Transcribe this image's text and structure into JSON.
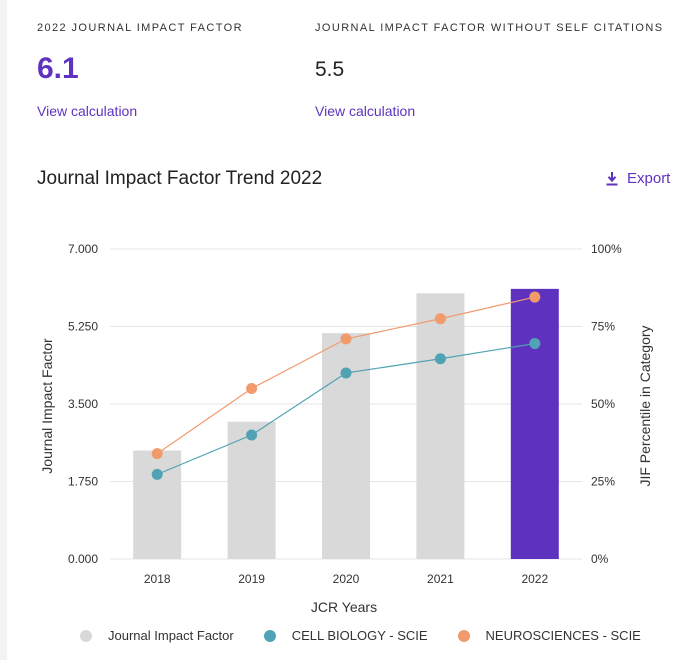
{
  "metrics": {
    "jif": {
      "label": "2022 JOURNAL IMPACT FACTOR",
      "value": "6.1",
      "link": "View calculation"
    },
    "jif_no_self": {
      "label": "JOURNAL IMPACT FACTOR WITHOUT SELF CITATIONS",
      "value": "5.5",
      "link": "View calculation"
    }
  },
  "export_label": "Export",
  "colors": {
    "accent": "#5e33bf",
    "bar": "#d9d9d9",
    "bar_highlight": "#5e31bf",
    "cell_biology": "#4fa3b4",
    "neurosciences": "#f19a6c"
  },
  "chart_data": {
    "type": "bar",
    "title": "Journal Impact Factor Trend 2022",
    "categories": [
      "2018",
      "2019",
      "2020",
      "2021",
      "2022"
    ],
    "xlabel": "JCR Years",
    "ylabel": "Journal Impact Factor",
    "ylabel_right": "JIF Percentile in Category",
    "ylim": [
      0,
      7
    ],
    "ylim_right": [
      0,
      100
    ],
    "yticks": [
      "0.000",
      "1.750",
      "3.500",
      "5.250",
      "7.000"
    ],
    "yticks_right": [
      "0%",
      "25%",
      "50%",
      "75%",
      "100%"
    ],
    "grid": true,
    "legend_position": "bottom",
    "highlight_category": "2022",
    "series": [
      {
        "name": "Journal Impact Factor",
        "type": "bar",
        "axis": "left",
        "values": [
          2.45,
          3.1,
          5.1,
          6.0,
          6.1
        ]
      },
      {
        "name": "CELL BIOLOGY - SCIE",
        "type": "line",
        "axis": "right",
        "values": [
          27.3,
          40.0,
          60.0,
          64.6,
          69.5
        ]
      },
      {
        "name": "NEUROSCIENCES - SCIE",
        "type": "line",
        "axis": "right",
        "values": [
          34.0,
          55.0,
          71.0,
          77.5,
          84.5
        ]
      }
    ]
  }
}
